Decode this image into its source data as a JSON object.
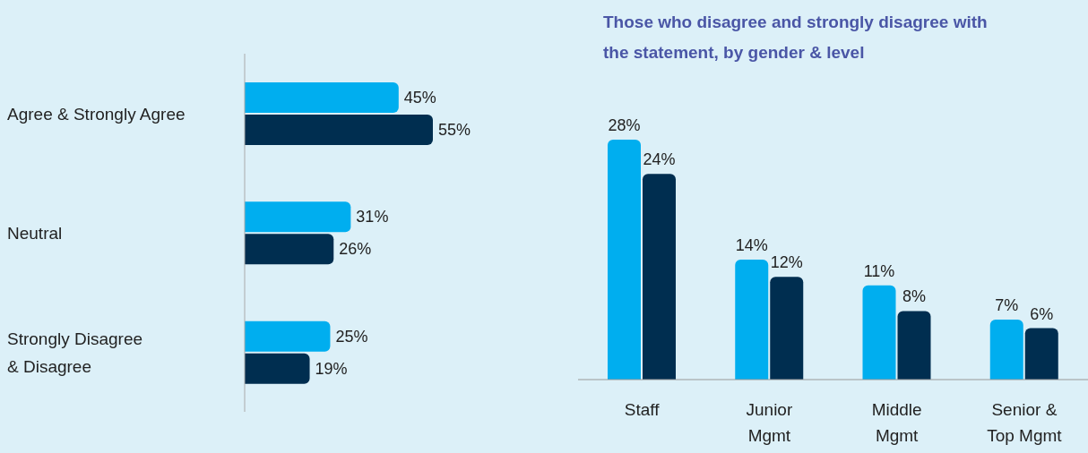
{
  "chart_data": [
    {
      "type": "bar",
      "orientation": "horizontal",
      "categories": [
        "Agree & Strongly Agree",
        "Neutral",
        "Strongly Disagree\n& Disagree"
      ],
      "series": [
        {
          "color": "#00aeef",
          "values": [
            45,
            31,
            25
          ],
          "value_labels": [
            "45%",
            "31%",
            "25%"
          ]
        },
        {
          "color": "#002e50",
          "values": [
            55,
            26,
            19
          ],
          "value_labels": [
            "55%",
            "26%",
            "19%"
          ]
        }
      ],
      "grid": false,
      "legend": false
    },
    {
      "type": "bar",
      "title": "Those who disagree and strongly disagree with\nthe statement, by gender & level",
      "categories": [
        "Staff",
        "Junior\nMgmt",
        "Middle\nMgmt",
        "Senior &\nTop Mgmt"
      ],
      "series": [
        {
          "color": "#00aeef",
          "values": [
            28,
            14,
            11,
            7
          ],
          "value_labels": [
            "28%",
            "14%",
            "11%",
            "7%"
          ]
        },
        {
          "color": "#002e50",
          "values": [
            24,
            12,
            8,
            6
          ],
          "value_labels": [
            "24%",
            "12%",
            "8%",
            "6%"
          ]
        }
      ],
      "grid": false,
      "legend": false
    }
  ]
}
